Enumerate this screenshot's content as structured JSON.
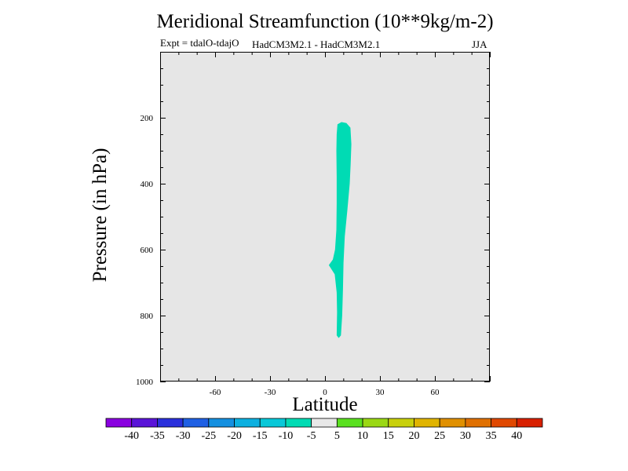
{
  "chart_data": {
    "type": "contour",
    "title": "Meridional Streamfunction (10**9kg/m-2)",
    "subtitle_left": "Expt = tdalO-tdajO",
    "subtitle_center": "HadCM3M2.1 - HadCM3M2.1",
    "subtitle_right": "JJA",
    "xlabel": "Latitude",
    "ylabel": "Pressure (in hPa)",
    "xlim": [
      -90,
      90
    ],
    "ylim": [
      1000,
      0
    ],
    "xticks": [
      -60,
      -30,
      0,
      30,
      60
    ],
    "xtick_labels": [
      "-60",
      "-30",
      "0",
      "30",
      "60"
    ],
    "yticks": [
      200,
      400,
      600,
      800,
      1000
    ],
    "ytick_labels": [
      "200",
      "400",
      "600",
      "800",
      "1000"
    ],
    "plot_background": "#e6e6e6",
    "filled_regions": [
      {
        "level_range": "-10 to -5",
        "color": "#00dbb4",
        "outline_lat_pressure": [
          [
            6.8,
            220
          ],
          [
            9.0,
            213
          ],
          [
            11.7,
            216
          ],
          [
            13.9,
            230
          ],
          [
            14.4,
            280
          ],
          [
            14.0,
            340
          ],
          [
            13.5,
            400
          ],
          [
            12.2,
            480
          ],
          [
            10.8,
            560
          ],
          [
            10.1,
            640
          ],
          [
            9.8,
            720
          ],
          [
            9.4,
            800
          ],
          [
            8.7,
            860
          ],
          [
            7.5,
            868
          ],
          [
            6.4,
            860
          ],
          [
            6.6,
            790
          ],
          [
            6.4,
            730
          ],
          [
            5.3,
            675
          ],
          [
            2.1,
            647
          ],
          [
            4.3,
            630
          ],
          [
            5.5,
            600
          ],
          [
            6.2,
            540
          ],
          [
            6.4,
            460
          ],
          [
            6.4,
            380
          ],
          [
            6.2,
            300
          ],
          [
            6.4,
            250
          ]
        ]
      }
    ],
    "colorbar": {
      "labels": [
        "-40",
        "-35",
        "-30",
        "-25",
        "-20",
        "-15",
        "-10",
        "-5",
        "5",
        "10",
        "15",
        "20",
        "25",
        "30",
        "35",
        "40"
      ],
      "colors": [
        "#8a00e0",
        "#5a14d8",
        "#2a30dc",
        "#1f60e4",
        "#1490e0",
        "#0cb0e0",
        "#08c8d8",
        "#00dbb4",
        "#e8e8e8",
        "#5ae020",
        "#9ad814",
        "#c8d00c",
        "#e0b400",
        "#e09000",
        "#e07000",
        "#e04800",
        "#d82000"
      ]
    }
  }
}
